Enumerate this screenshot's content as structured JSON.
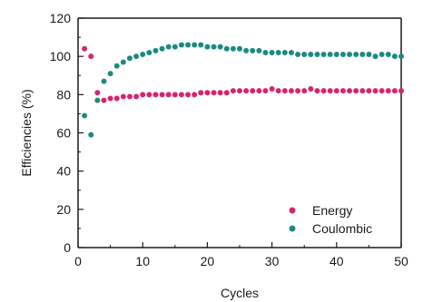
{
  "chart_data": {
    "type": "scatter",
    "xlabel": "Cycles",
    "ylabel": "Efficiencies (%)",
    "xlim": [
      0,
      50
    ],
    "ylim": [
      0,
      120
    ],
    "xticks": [
      "0",
      "10",
      "20",
      "30",
      "40",
      "50"
    ],
    "yticks": [
      "0",
      "20",
      "40",
      "60",
      "80",
      "100",
      "120"
    ],
    "grid": false,
    "legend_position": "bottom-right",
    "series": [
      {
        "name": "Energy",
        "color": "#d6246e",
        "x": [
          1,
          2,
          3,
          4,
          5,
          6,
          7,
          8,
          9,
          10,
          11,
          12,
          13,
          14,
          15,
          16,
          17,
          18,
          19,
          20,
          21,
          22,
          23,
          24,
          25,
          26,
          27,
          28,
          29,
          30,
          31,
          32,
          33,
          34,
          35,
          36,
          37,
          38,
          39,
          40,
          41,
          42,
          43,
          44,
          45,
          46,
          47,
          48,
          49,
          50
        ],
        "y": [
          104,
          100,
          81,
          77,
          78,
          78,
          79,
          79,
          79,
          80,
          80,
          80,
          80,
          80,
          80,
          80,
          80,
          80,
          81,
          81,
          81,
          81,
          81,
          82,
          82,
          82,
          82,
          82,
          82,
          83,
          82,
          82,
          82,
          82,
          82,
          83,
          82,
          82,
          82,
          82,
          82,
          82,
          82,
          82,
          82,
          82,
          82,
          82,
          82,
          82
        ]
      },
      {
        "name": "Coulombic",
        "color": "#1d8a80",
        "x": [
          1,
          2,
          3,
          4,
          5,
          6,
          7,
          8,
          9,
          10,
          11,
          12,
          13,
          14,
          15,
          16,
          17,
          18,
          19,
          20,
          21,
          22,
          23,
          24,
          25,
          26,
          27,
          28,
          29,
          30,
          31,
          32,
          33,
          34,
          35,
          36,
          37,
          38,
          39,
          40,
          41,
          42,
          43,
          44,
          45,
          46,
          47,
          48,
          49,
          50
        ],
        "y": [
          69,
          59,
          77,
          87,
          91,
          95,
          97,
          99,
          100,
          101,
          102,
          103,
          104,
          105,
          105,
          106,
          106,
          106,
          106,
          105,
          105,
          105,
          104,
          104,
          104,
          103,
          103,
          103,
          102,
          102,
          102,
          102,
          102,
          101,
          101,
          101,
          101,
          101,
          101,
          101,
          101,
          101,
          101,
          101,
          101,
          100,
          101,
          101,
          100,
          100
        ]
      }
    ]
  }
}
